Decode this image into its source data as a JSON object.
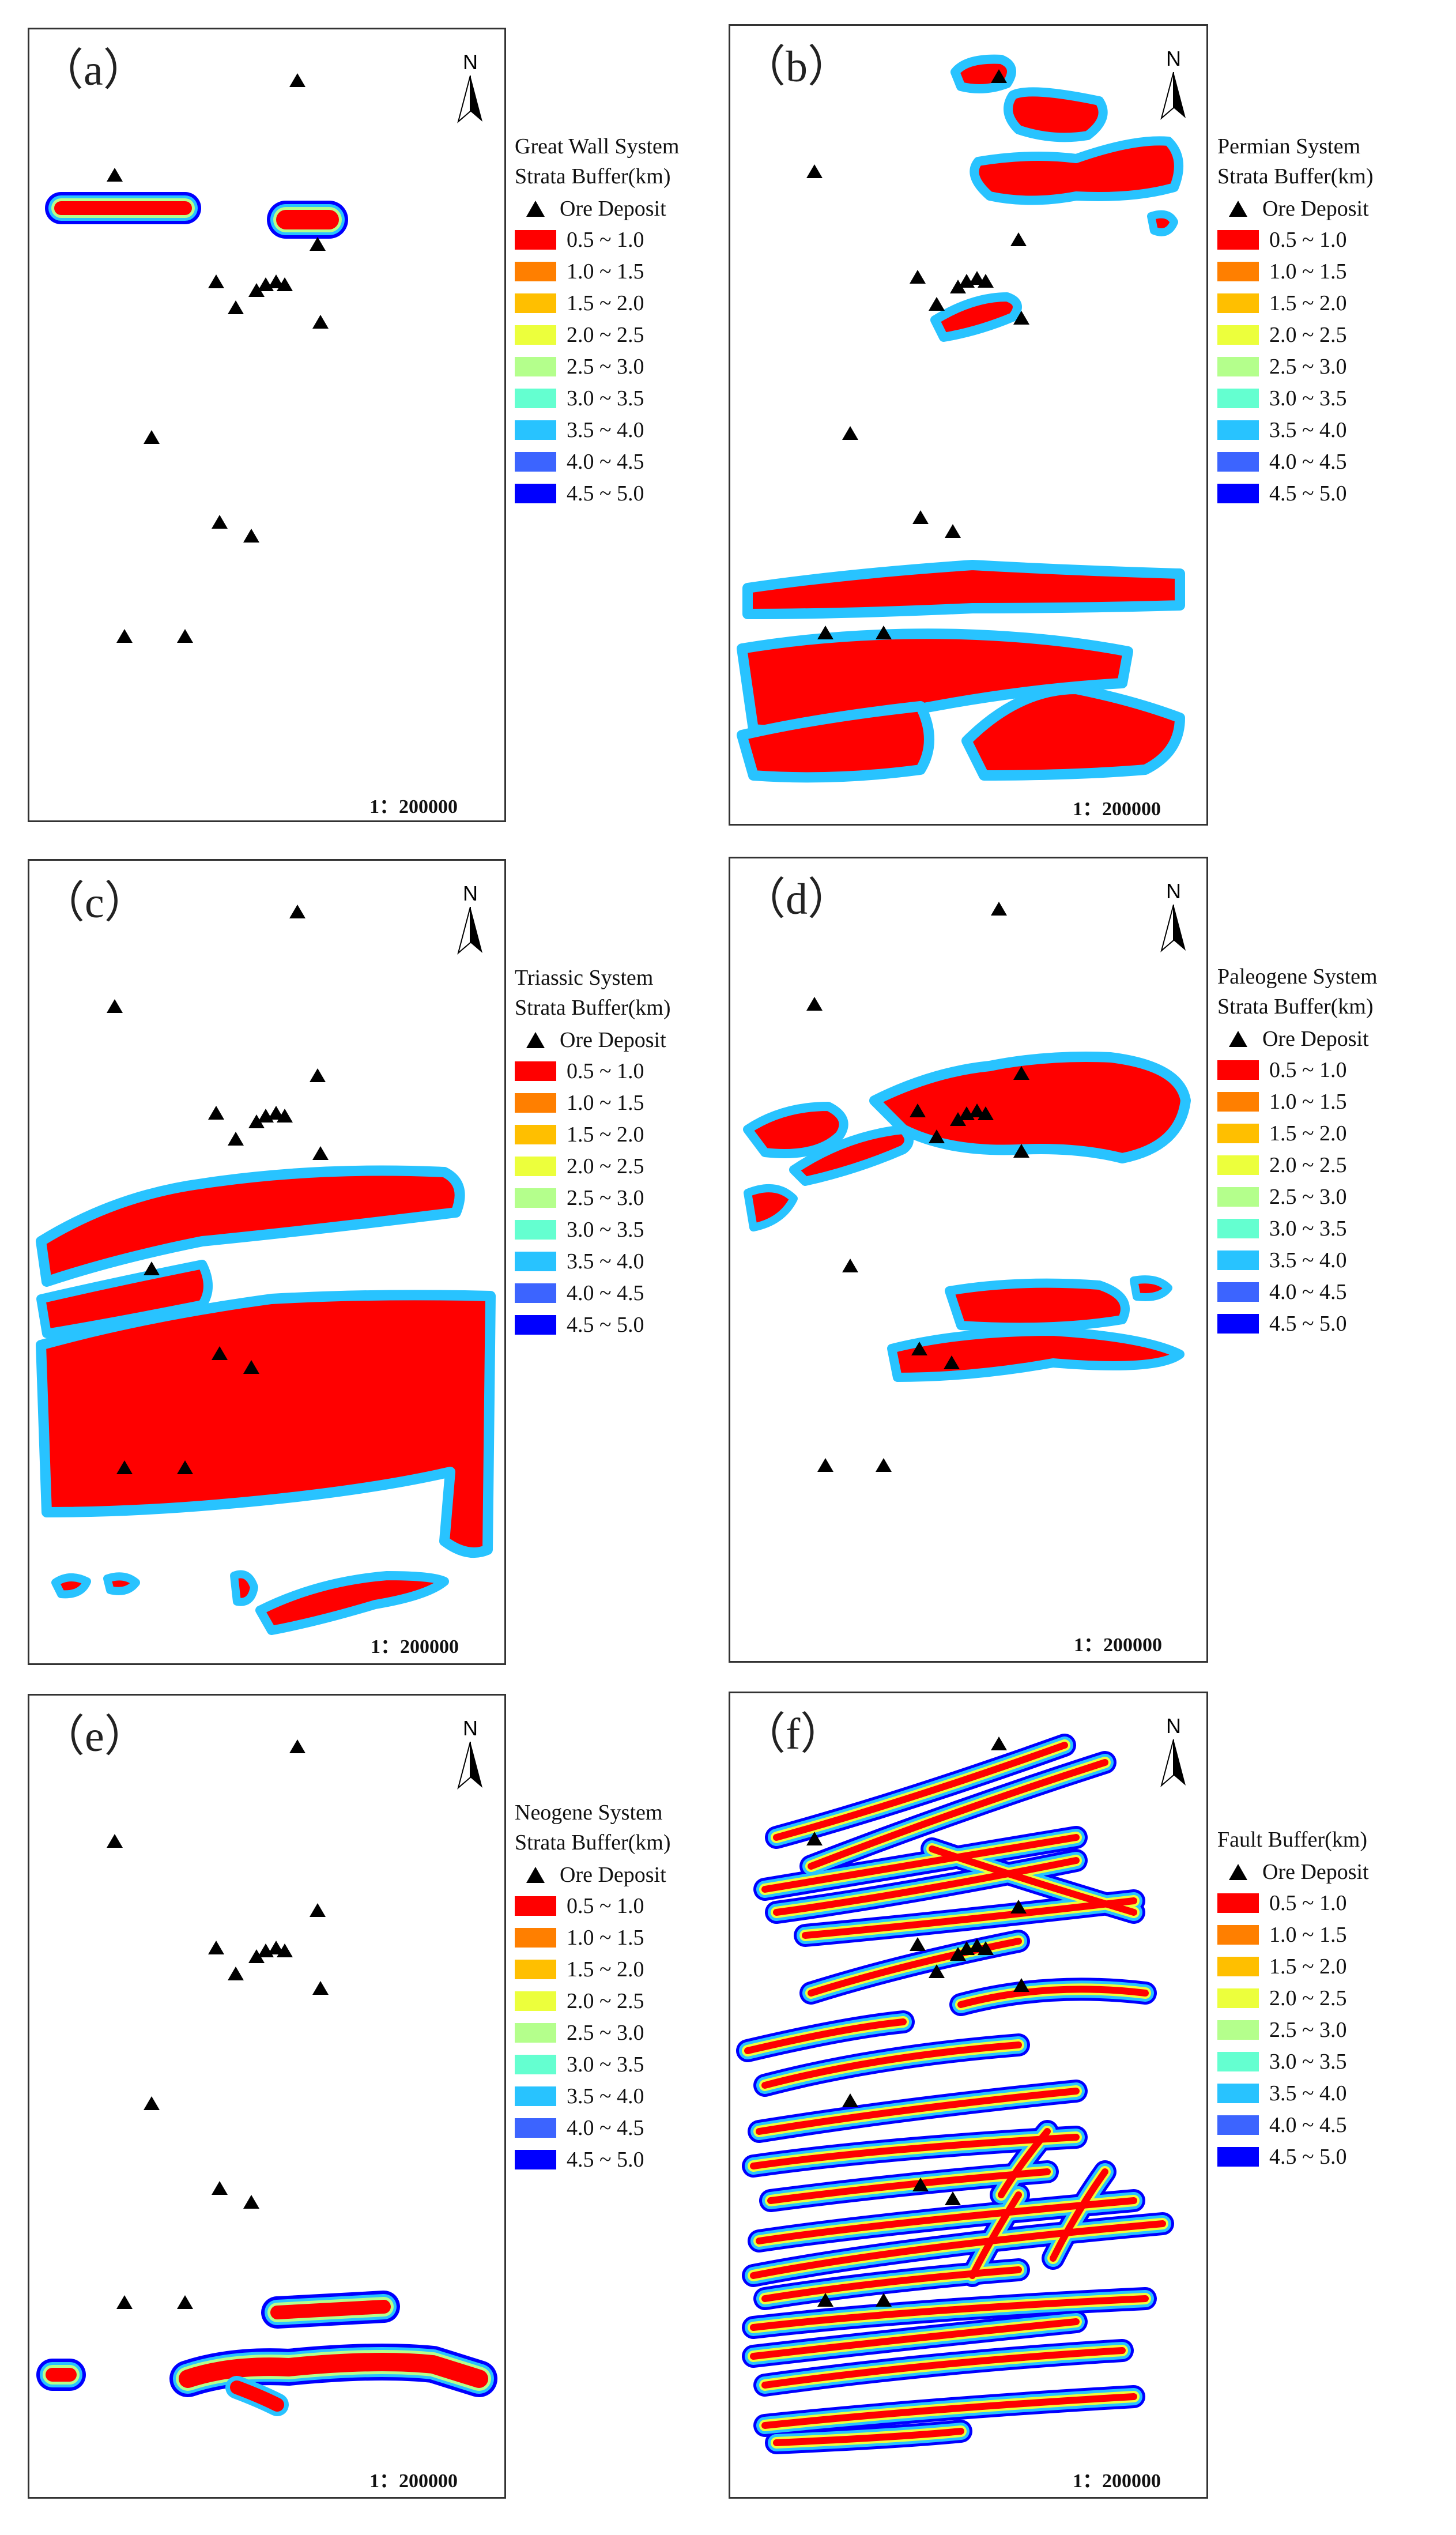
{
  "scale_label": "1：200000",
  "north_label": "N",
  "legend": {
    "ore_label": "Ore Deposit",
    "classes": [
      {
        "label": "0.5 ~ 1.0",
        "color": "#ff0000"
      },
      {
        "label": "1.0 ~ 1.5",
        "color": "#ff7f00"
      },
      {
        "label": "1.5 ~ 2.0",
        "color": "#ffbf00"
      },
      {
        "label": "2.0 ~ 2.5",
        "color": "#ecff3c"
      },
      {
        "label": "2.5 ~ 3.0",
        "color": "#b4ff8c"
      },
      {
        "label": "3.0 ~ 3.5",
        "color": "#64ffd0"
      },
      {
        "label": "3.5 ~ 4.0",
        "color": "#28c3ff"
      },
      {
        "label": "4.0 ~ 4.5",
        "color": "#3c64ff"
      },
      {
        "label": "4.5 ~ 5.0",
        "color": "#0000ff"
      }
    ]
  },
  "panels": [
    {
      "id": "a",
      "label": "（a）",
      "title1": "Great Wall System",
      "title2": "Strata Buffer(km)"
    },
    {
      "id": "b",
      "label": "（b）",
      "title1": "Permian System",
      "title2": "Strata Buffer(km)"
    },
    {
      "id": "c",
      "label": "（c）",
      "title1": "Triassic System",
      "title2": "Strata Buffer(km)"
    },
    {
      "id": "d",
      "label": "（d）",
      "title1": "Paleogene System",
      "title2": "Strata Buffer(km)"
    },
    {
      "id": "e",
      "label": "（e）",
      "title1": "Neogene System",
      "title2": "Strata Buffer(km)"
    },
    {
      "id": "f",
      "label": "（f）",
      "title1": "Fault Buffer(km)",
      "title2": ""
    }
  ]
}
